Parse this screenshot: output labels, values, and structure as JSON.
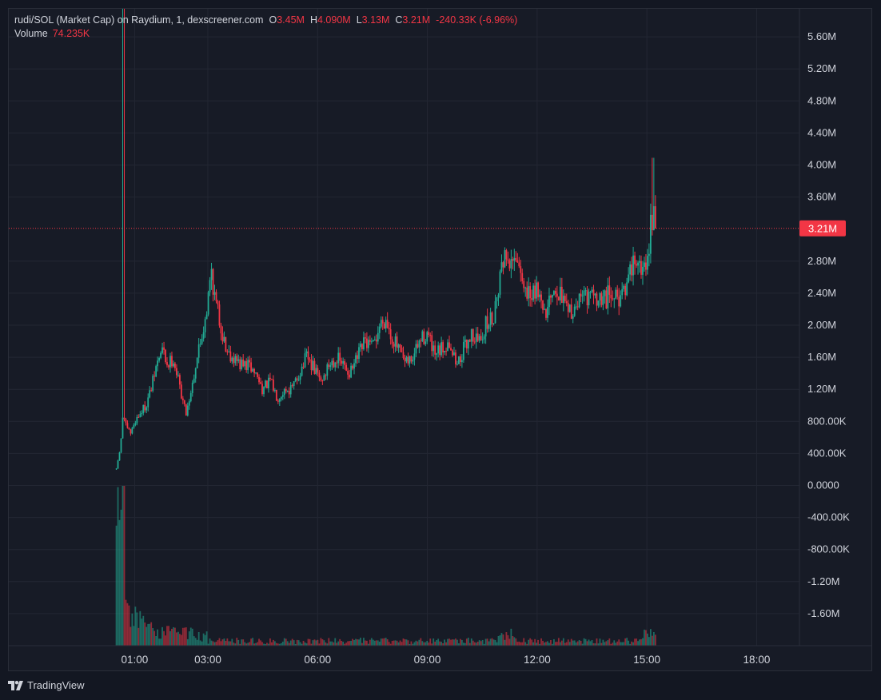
{
  "legend": {
    "symbol": "rudi/SOL (Market Cap) on Raydium, 1, dexscreener.com",
    "o_label": "O",
    "o_value": "3.45M",
    "h_label": "H",
    "h_value": "4.090M",
    "l_label": "L",
    "l_value": "3.13M",
    "c_label": "C",
    "c_value": "3.21M",
    "change": "-240.33K (-6.96%)",
    "volume_label": "Volume",
    "volume_value": "74.235K"
  },
  "price_tag": "3.21M",
  "footer": {
    "brand": "TradingView",
    "logo_icon": "tradingview-logo-icon"
  },
  "colors": {
    "up": "#22ab94",
    "down": "#f23645",
    "background": "#171b26",
    "grid": "#232733",
    "text": "#d1d4dc"
  },
  "chart_data": {
    "type": "candlestick",
    "title": "rudi/SOL (Market Cap) on Raydium, 1, dexscreener.com",
    "y_tick_labels": [
      "5.60M",
      "5.20M",
      "4.80M",
      "4.40M",
      "4.00M",
      "3.60M",
      "3.21M",
      "2.80M",
      "2.40M",
      "2.00M",
      "1.60M",
      "1.20M",
      "800.00K",
      "400.00K",
      "0.0000",
      "-400.00K",
      "-800.00K",
      "-1.20M",
      "-1.60M"
    ],
    "y_ticks": [
      5600000,
      5200000,
      4800000,
      4400000,
      4000000,
      3600000,
      2800000,
      2400000,
      2000000,
      1600000,
      1200000,
      800000,
      400000,
      0,
      -400000,
      -800000,
      -1200000,
      -1600000
    ],
    "y_tick_texts": [
      "5.60M",
      "5.20M",
      "4.80M",
      "4.40M",
      "4.00M",
      "3.60M",
      "2.80M",
      "2.40M",
      "2.00M",
      "1.60M",
      "1.20M",
      "800.00K",
      "400.00K",
      "0.0000",
      "-400.00K",
      "-800.00K",
      "-1.20M",
      "-1.60M"
    ],
    "ylim": [
      -2000000,
      5950000
    ],
    "x_tick_labels": [
      "01:00",
      "03:00",
      "06:00",
      "09:00",
      "12:00",
      "15:00",
      "18:00"
    ],
    "x_ticks_hours": [
      1,
      3,
      6,
      9,
      12,
      15,
      18
    ],
    "xlim_hours": [
      -2.44,
      19.17
    ],
    "last_close": 3210000,
    "price_path": [
      [
        0.5,
        200000
      ],
      [
        0.62,
        500000
      ],
      [
        0.68,
        900000
      ],
      [
        0.78,
        700000
      ],
      [
        0.9,
        650000
      ],
      [
        1.0,
        800000
      ],
      [
        1.15,
        900000
      ],
      [
        1.3,
        1000000
      ],
      [
        1.45,
        1200000
      ],
      [
        1.6,
        1500000
      ],
      [
        1.75,
        1700000
      ],
      [
        1.9,
        1500000
      ],
      [
        2.05,
        1600000
      ],
      [
        2.2,
        1300000
      ],
      [
        2.4,
        900000
      ],
      [
        2.55,
        1200000
      ],
      [
        2.7,
        1600000
      ],
      [
        2.85,
        1900000
      ],
      [
        3.0,
        2300000
      ],
      [
        3.1,
        2700000
      ],
      [
        3.2,
        2300000
      ],
      [
        3.35,
        2000000
      ],
      [
        3.5,
        1700000
      ],
      [
        3.7,
        1600000
      ],
      [
        3.9,
        1500000
      ],
      [
        4.1,
        1500000
      ],
      [
        4.3,
        1400000
      ],
      [
        4.5,
        1200000
      ],
      [
        4.7,
        1300000
      ],
      [
        4.9,
        1100000
      ],
      [
        5.1,
        1200000
      ],
      [
        5.3,
        1200000
      ],
      [
        5.5,
        1400000
      ],
      [
        5.7,
        1600000
      ],
      [
        5.9,
        1450000
      ],
      [
        6.1,
        1300000
      ],
      [
        6.3,
        1500000
      ],
      [
        6.5,
        1600000
      ],
      [
        6.7,
        1500000
      ],
      [
        6.9,
        1400000
      ],
      [
        7.1,
        1600000
      ],
      [
        7.3,
        1800000
      ],
      [
        7.5,
        1700000
      ],
      [
        7.7,
        2000000
      ],
      [
        7.85,
        2100000
      ],
      [
        8.0,
        1900000
      ],
      [
        8.2,
        1700000
      ],
      [
        8.4,
        1500000
      ],
      [
        8.6,
        1600000
      ],
      [
        8.8,
        1800000
      ],
      [
        9.0,
        1900000
      ],
      [
        9.2,
        1600000
      ],
      [
        9.4,
        1700000
      ],
      [
        9.6,
        1800000
      ],
      [
        9.8,
        1500000
      ],
      [
        10.0,
        1700000
      ],
      [
        10.2,
        1900000
      ],
      [
        10.4,
        1800000
      ],
      [
        10.6,
        2000000
      ],
      [
        10.8,
        2100000
      ],
      [
        11.0,
        2700000
      ],
      [
        11.2,
        2900000
      ],
      [
        11.4,
        2700000
      ],
      [
        11.6,
        2500000
      ],
      [
        11.8,
        2400000
      ],
      [
        12.0,
        2500000
      ],
      [
        12.2,
        2200000
      ],
      [
        12.4,
        2300000
      ],
      [
        12.6,
        2400000
      ],
      [
        12.8,
        2150000
      ],
      [
        13.0,
        2200000
      ],
      [
        13.2,
        2300000
      ],
      [
        13.4,
        2400000
      ],
      [
        13.6,
        2250000
      ],
      [
        13.8,
        2300000
      ],
      [
        14.0,
        2400000
      ],
      [
        14.2,
        2350000
      ],
      [
        14.4,
        2500000
      ],
      [
        14.6,
        2800000
      ],
      [
        14.75,
        2900000
      ],
      [
        14.9,
        2700000
      ],
      [
        15.05,
        3000000
      ],
      [
        15.15,
        3400000
      ],
      [
        15.25,
        3210000
      ]
    ]
  }
}
